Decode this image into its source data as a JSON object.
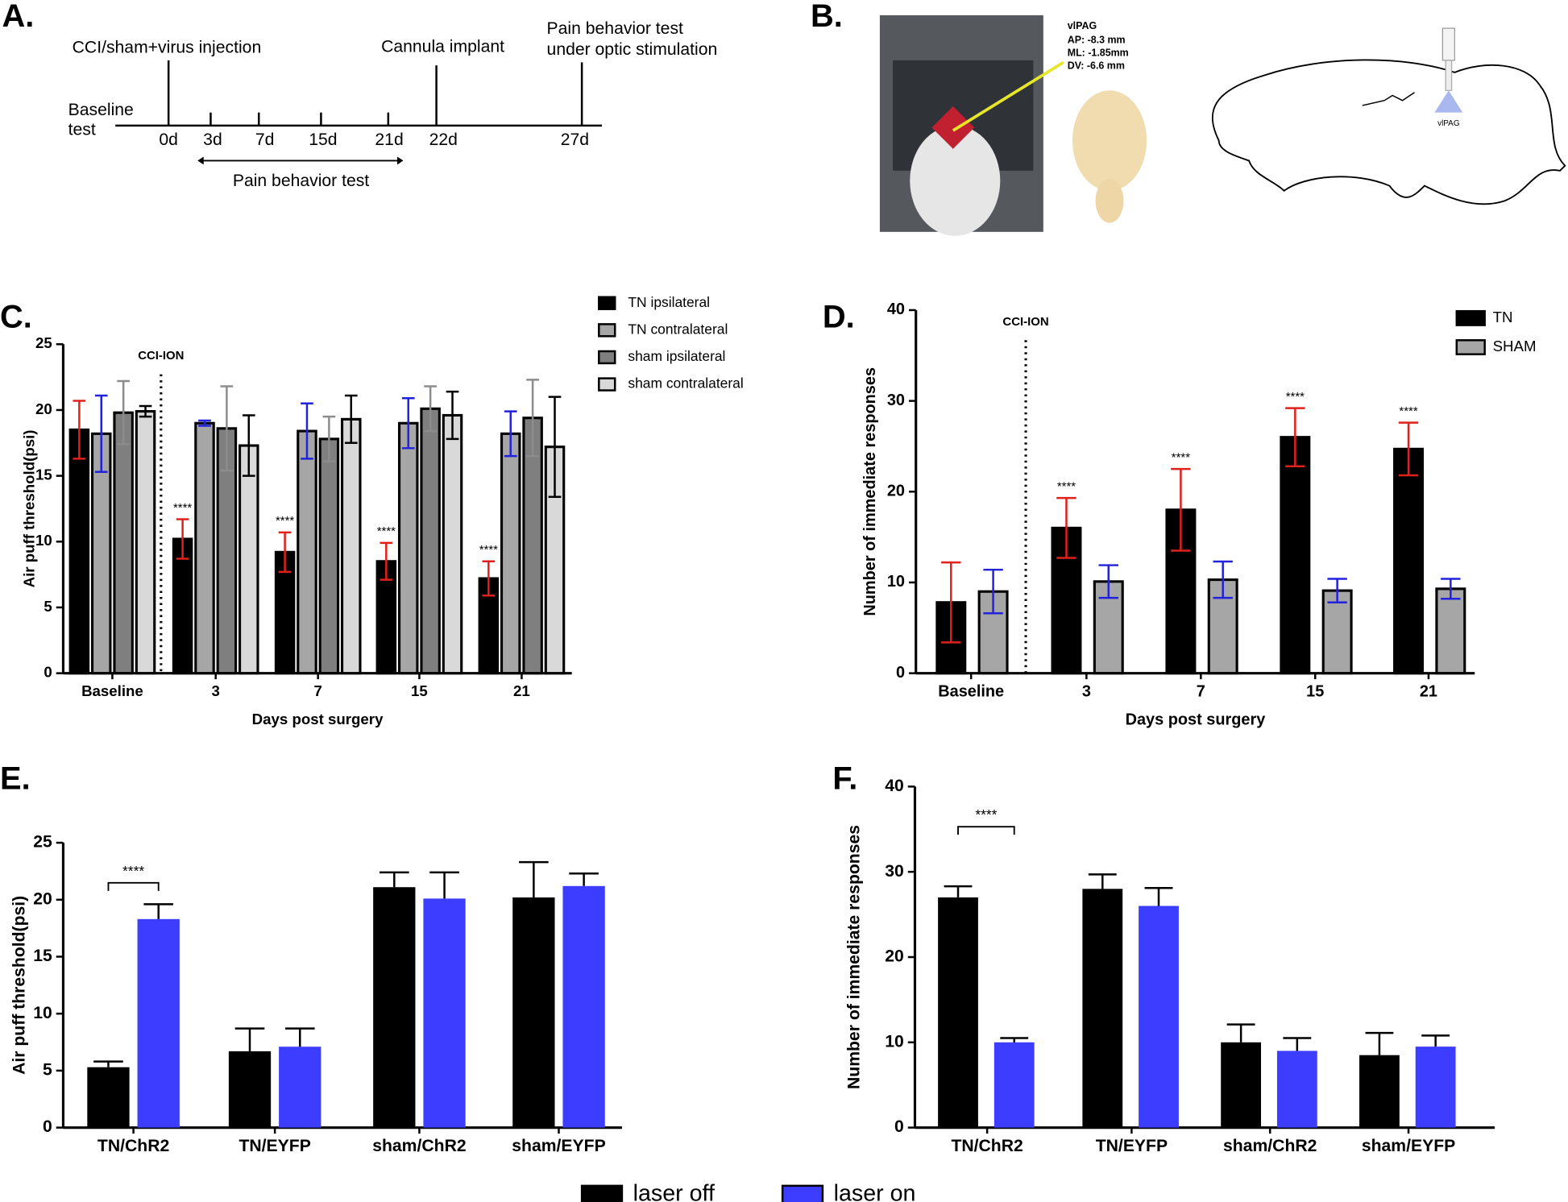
{
  "panel_a": {
    "label": "A.",
    "injection": "CCI/sham+virus injection",
    "cannula": "Cannula implant",
    "optic_test": [
      "Pain behavior test",
      "under optic stimulation"
    ],
    "baseline": [
      "Baseline",
      "test"
    ],
    "days": [
      "0d",
      "3d",
      "7d",
      "15d",
      "21d",
      "22d",
      "27d"
    ],
    "pain_test": "Pain behavior test"
  },
  "panel_b": {
    "label": "B.",
    "target": "vlPAG",
    "coordinates": [
      "AP: -8.3 mm",
      "ML: -1.85mm",
      "DV: -6.6 mm"
    ],
    "diagram_label": "vlPAG"
  },
  "chart_data": [
    {
      "type": "bar",
      "panel": "C.",
      "xlabel": "Days post surgery",
      "ylabel": "Air puff threshold(psi)",
      "categories": [
        "Baseline",
        "3",
        "7",
        "15",
        "21"
      ],
      "ylim": [
        0,
        25
      ],
      "yticks": [
        0,
        5,
        10,
        15,
        20,
        25
      ],
      "error_bars": "both",
      "bar_outline": true,
      "marker": {
        "label": "CCI-ION",
        "after": "Baseline"
      },
      "series": [
        {
          "name": "TN ipsilateral",
          "color": "#000000",
          "error_color": "#e0201b",
          "values": [
            18.5,
            10.2,
            9.2,
            8.5,
            7.2
          ],
          "errors": [
            2.2,
            1.5,
            1.5,
            1.4,
            1.3
          ],
          "significance": [
            null,
            "****",
            "****",
            "****",
            "****"
          ]
        },
        {
          "name": "TN contralateral",
          "color": "#a6a6a6",
          "error_color": "#2222dd",
          "values": [
            18.2,
            19.0,
            18.4,
            19.0,
            18.2
          ],
          "errors": [
            2.9,
            0.2,
            2.1,
            1.9,
            1.7
          ]
        },
        {
          "name": "sham ipsilateral",
          "color": "#7f7f7f",
          "error_color": "#8c8c8c",
          "values": [
            19.8,
            18.6,
            17.8,
            20.1,
            19.4
          ],
          "errors": [
            2.4,
            3.2,
            1.7,
            1.7,
            2.9
          ]
        },
        {
          "name": "sham contralateral",
          "color": "#d9d9d9",
          "error_color": "#000000",
          "values": [
            19.9,
            17.3,
            19.3,
            19.6,
            17.2
          ],
          "errors": [
            0.4,
            2.3,
            1.8,
            1.8,
            3.8
          ]
        }
      ]
    },
    {
      "type": "bar",
      "panel": "D.",
      "xlabel": "Days post surgery",
      "ylabel": "Number of immediate responses",
      "categories": [
        "Baseline",
        "3",
        "7",
        "15",
        "21"
      ],
      "ylim": [
        0,
        40
      ],
      "yticks": [
        0,
        10,
        20,
        30,
        40
      ],
      "error_bars": "both",
      "bar_outline": true,
      "marker": {
        "label": "CCI-ION",
        "after": "Baseline"
      },
      "series": [
        {
          "name": "TN",
          "color": "#000000",
          "error_color": "#e0201b",
          "values": [
            7.8,
            16.0,
            18.0,
            26.0,
            24.7
          ],
          "errors": [
            4.4,
            3.3,
            4.5,
            3.2,
            2.9
          ],
          "significance": [
            null,
            "****",
            "****",
            "****",
            "****"
          ]
        },
        {
          "name": "SHAM",
          "color": "#a6a6a6",
          "error_color": "#2222dd",
          "values": [
            9.0,
            10.1,
            10.3,
            9.1,
            9.3
          ],
          "errors": [
            2.4,
            1.8,
            2.0,
            1.3,
            1.1
          ]
        }
      ]
    },
    {
      "type": "bar",
      "panel": "E.",
      "ylabel": "Air puff threshold(psi)",
      "categories": [
        "TN/ChR2",
        "TN/EYFP",
        "sham/ChR2",
        "sham/EYFP"
      ],
      "ylim": [
        0,
        25
      ],
      "yticks": [
        0,
        5,
        10,
        15,
        20,
        25
      ],
      "error_bars": "up",
      "bar_outline": false,
      "comparison": {
        "label": "****",
        "category": "TN/ChR2"
      },
      "series": [
        {
          "name": "laser off",
          "color": "#000000",
          "error_color": "#000000",
          "values": [
            5.3,
            6.7,
            21.1,
            20.2
          ],
          "errors": [
            0.5,
            2.0,
            1.3,
            3.1
          ]
        },
        {
          "name": "laser on",
          "color": "#3d3dff",
          "error_color": "#000000",
          "values": [
            18.3,
            7.1,
            20.1,
            21.2
          ],
          "errors": [
            1.3,
            1.6,
            2.3,
            1.1
          ]
        }
      ]
    },
    {
      "type": "bar",
      "panel": "F.",
      "ylabel": "Number of immediate responses",
      "categories": [
        "TN/ChR2",
        "TN/EYFP",
        "sham/ChR2",
        "sham/EYFP"
      ],
      "ylim": [
        0,
        40
      ],
      "yticks": [
        0,
        10,
        20,
        30,
        40
      ],
      "error_bars": "up",
      "bar_outline": false,
      "comparison": {
        "label": "****",
        "category": "TN/ChR2"
      },
      "series": [
        {
          "color": "#000000",
          "error_color": "#000000",
          "values": [
            27.0,
            28.0,
            10.0,
            8.5
          ],
          "errors": [
            1.3,
            1.7,
            2.1,
            2.6
          ]
        },
        {
          "color": "#3d3dff",
          "error_color": "#000000",
          "values": [
            10.0,
            26.0,
            9.0,
            9.5
          ],
          "errors": [
            0.5,
            2.1,
            1.5,
            1.3
          ]
        }
      ]
    }
  ]
}
